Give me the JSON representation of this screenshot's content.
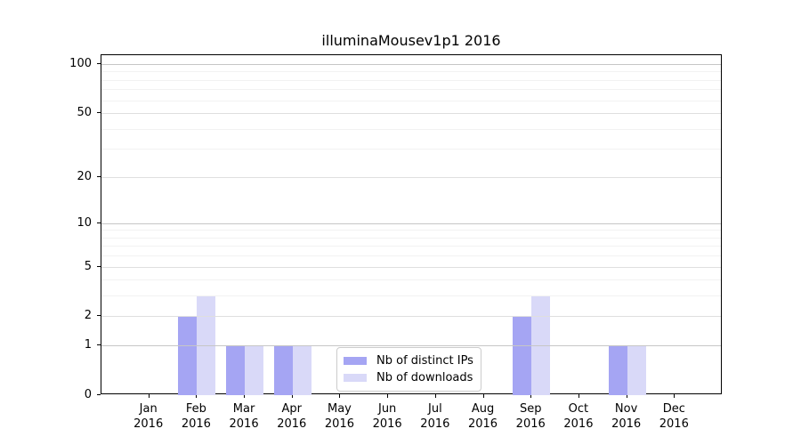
{
  "title": "illuminaMousev1p1 2016",
  "chart_data": {
    "type": "bar",
    "title": "illuminaMousev1p1 2016",
    "categories": [
      "Jan 2016",
      "Feb 2016",
      "Mar 2016",
      "Apr 2016",
      "May 2016",
      "Jun 2016",
      "Jul 2016",
      "Aug 2016",
      "Sep 2016",
      "Oct 2016",
      "Nov 2016",
      "Dec 2016"
    ],
    "series": [
      {
        "name": "Nb of distinct IPs",
        "color": "#a5a5f3",
        "values": [
          0,
          2,
          1,
          1,
          0,
          0,
          0,
          0,
          2,
          0,
          1,
          0
        ]
      },
      {
        "name": "Nb of downloads",
        "color": "#d9d9f8",
        "values": [
          0,
          3,
          1,
          1,
          0,
          0,
          0,
          0,
          3,
          0,
          1,
          0
        ]
      }
    ],
    "xlabel": "",
    "ylabel": "",
    "yscale": "log1p",
    "ylim": [
      0,
      113
    ],
    "yticks": [
      0,
      1,
      2,
      5,
      10,
      20,
      50,
      100
    ],
    "yticks_mid": [
      2,
      5,
      20,
      50
    ],
    "yticks_minor": [
      3,
      4,
      6,
      7,
      8,
      9,
      30,
      40,
      60,
      70,
      80,
      90
    ],
    "grid": "on",
    "legend_location": "lower center",
    "colors": {
      "grid_major": "#c6c6c6",
      "grid_mid": "#dfdfdf",
      "grid_minor": "#f2f2f2",
      "axis": "#000000",
      "background": "#ffffff"
    }
  }
}
